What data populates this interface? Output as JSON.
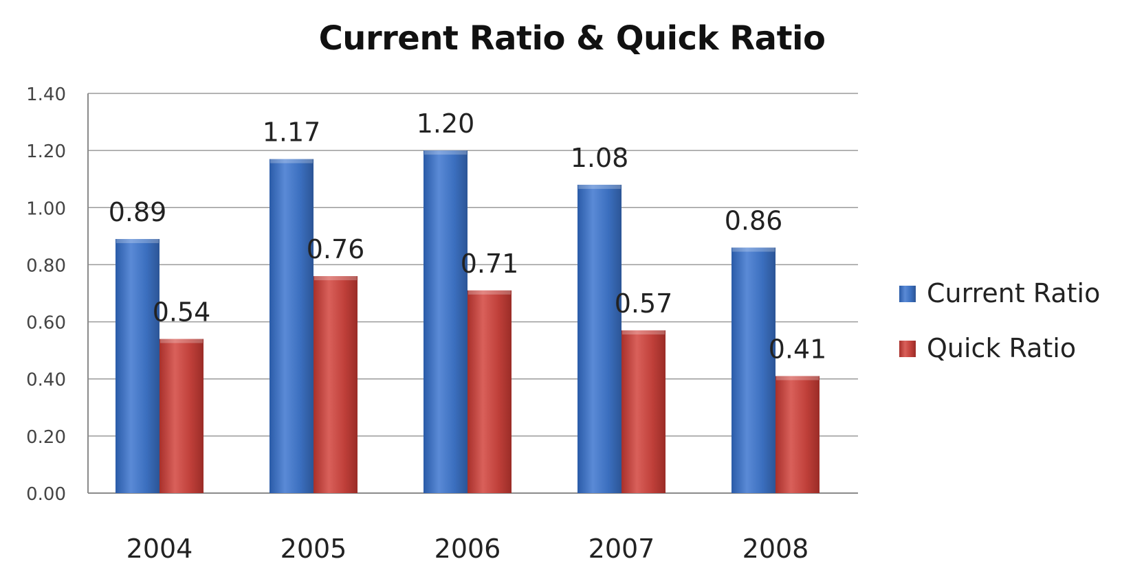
{
  "chart_data": {
    "type": "bar",
    "title": "Current Ratio & Quick Ratio",
    "categories": [
      "2004",
      "2005",
      "2006",
      "2007",
      "2008"
    ],
    "series": [
      {
        "name": "Current Ratio",
        "color": "#3B6FBF",
        "values": [
          0.89,
          1.17,
          1.2,
          1.08,
          0.86
        ],
        "labels": [
          "0.89",
          "1.17",
          "1.20",
          "1.08",
          "0.86"
        ]
      },
      {
        "name": "Quick Ratio",
        "color": "#C0403A",
        "values": [
          0.54,
          0.76,
          0.71,
          0.57,
          0.41
        ],
        "labels": [
          "0.54",
          "0.76",
          "0.71",
          "0.57",
          "0.41"
        ]
      }
    ],
    "ylim": [
      0,
      1.4
    ],
    "yticks": [
      "0.00",
      "0.20",
      "0.40",
      "0.60",
      "0.80",
      "1.00",
      "1.20",
      "1.40"
    ],
    "xlabel": "",
    "ylabel": "",
    "grid": true,
    "legend": "right"
  }
}
